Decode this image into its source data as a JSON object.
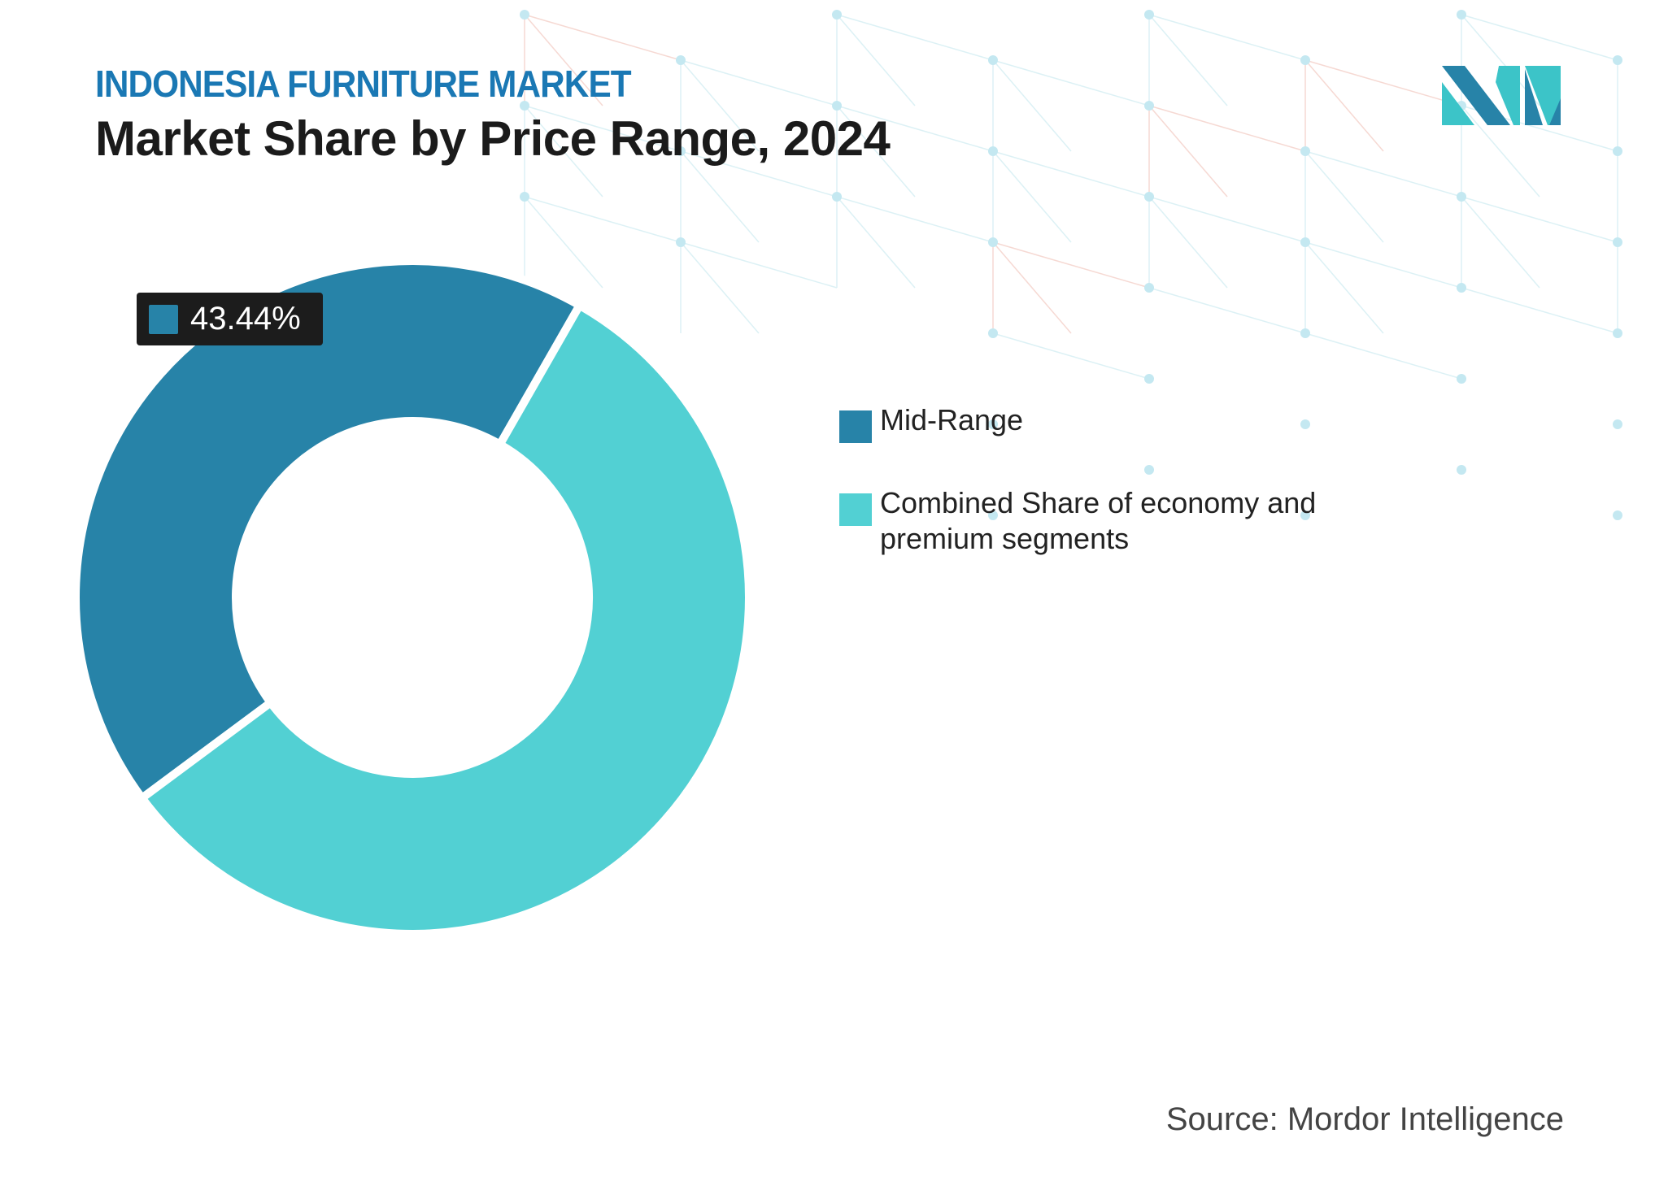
{
  "header": {
    "kicker": "INDONESIA FURNITURE MARKET",
    "title": "Market Share by Price Range, 2024"
  },
  "chart_data": {
    "type": "pie",
    "donut": true,
    "series": [
      {
        "name": "Mid-Range",
        "value": 43.44,
        "color": "#2783a8"
      },
      {
        "name": "Combined Share of economy and premium segments",
        "value": 56.56,
        "color": "#52d0d3"
      }
    ],
    "data_labels": [
      {
        "series": "Mid-Range",
        "text": "43.44%"
      }
    ],
    "legend_placement": "right"
  },
  "footer": {
    "source": "Source: Mordor Intelligence"
  },
  "colors": {
    "accent": "#1a78b4",
    "logo_dark": "#2783a8",
    "logo_light": "#3cc4c8"
  }
}
